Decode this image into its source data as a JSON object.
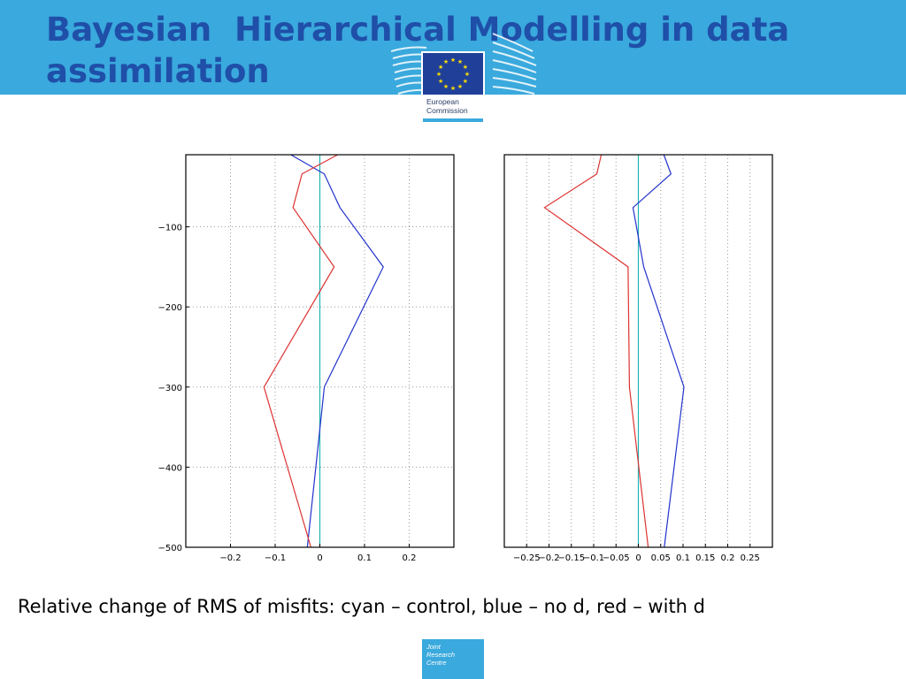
{
  "slide": {
    "title": "Bayesian  Hierarchical Modelling in data assimilation",
    "caption": "Relative change of RMS of misfits: cyan – control, blue – no d, red – with d"
  },
  "logos": {
    "ec_line1": "European",
    "ec_line2": "Commission",
    "jrc_line1": "Joint",
    "jrc_line2": "Research",
    "jrc_line3": "Centre"
  },
  "colors": {
    "header": "#3aa9dd",
    "title": "#1f4fa8",
    "control": "#1fb3b3",
    "no_d": "#2233cc",
    "with_d": "#dd3333"
  },
  "chart_data": [
    {
      "type": "line",
      "title": "",
      "xlabel": "",
      "ylabel": "",
      "xlim": [
        -0.3,
        0.3
      ],
      "ylim": [
        -500,
        -10
      ],
      "xticks": [
        -0.2,
        -0.1,
        0,
        0.1,
        0.2
      ],
      "xtick_labels": [
        "−0.2",
        "−0.1",
        "0",
        "0.1",
        "0.2"
      ],
      "yticks": [
        -100,
        -200,
        -300,
        -400,
        -500
      ],
      "ytick_labels": [
        "−100",
        "−200",
        "−300",
        "−400",
        "−500"
      ],
      "grid": true,
      "series": [
        {
          "color": "#1fb3b3",
          "x": [
            0,
            0
          ],
          "y": [
            -10,
            -500
          ]
        },
        {
          "color": "#2233cc",
          "x": [
            -0.065,
            0.01,
            0.045,
            0.142,
            0.01,
            -0.028
          ],
          "y": [
            -10,
            -34,
            -76,
            -150,
            -300,
            -500
          ]
        },
        {
          "color": "#dd3333",
          "x": [
            0.04,
            -0.04,
            -0.06,
            0.032,
            -0.125,
            -0.02
          ],
          "y": [
            -10,
            -34,
            -76,
            -150,
            -300,
            -500
          ]
        }
      ]
    },
    {
      "type": "line",
      "title": "",
      "xlabel": "",
      "ylabel": "",
      "xlim": [
        -0.3,
        0.3
      ],
      "ylim": [
        -500,
        -10
      ],
      "xticks": [
        -0.25,
        -0.2,
        -0.15,
        -0.1,
        -0.05,
        0,
        0.05,
        0.1,
        0.15,
        0.2,
        0.25
      ],
      "xtick_labels": [
        "−0.25",
        "−0.2",
        "−0.15",
        "−0.1",
        "−0.05",
        "0",
        "0.05",
        "0.1",
        "0.15",
        "0.2",
        "0.25"
      ],
      "yticks": [],
      "ytick_labels": [],
      "grid": true,
      "series": [
        {
          "color": "#1fb3b3",
          "x": [
            0,
            0
          ],
          "y": [
            -10,
            -500
          ]
        },
        {
          "color": "#2233cc",
          "x": [
            0.057,
            0.073,
            -0.012,
            0.012,
            0.102,
            0.058
          ],
          "y": [
            -10,
            -34,
            -76,
            -150,
            -300,
            -500
          ]
        },
        {
          "color": "#dd3333",
          "x": [
            -0.083,
            -0.093,
            -0.21,
            -0.023,
            -0.02,
            0.022
          ],
          "y": [
            -10,
            -34,
            -76,
            -150,
            -300,
            -500
          ]
        }
      ]
    }
  ]
}
